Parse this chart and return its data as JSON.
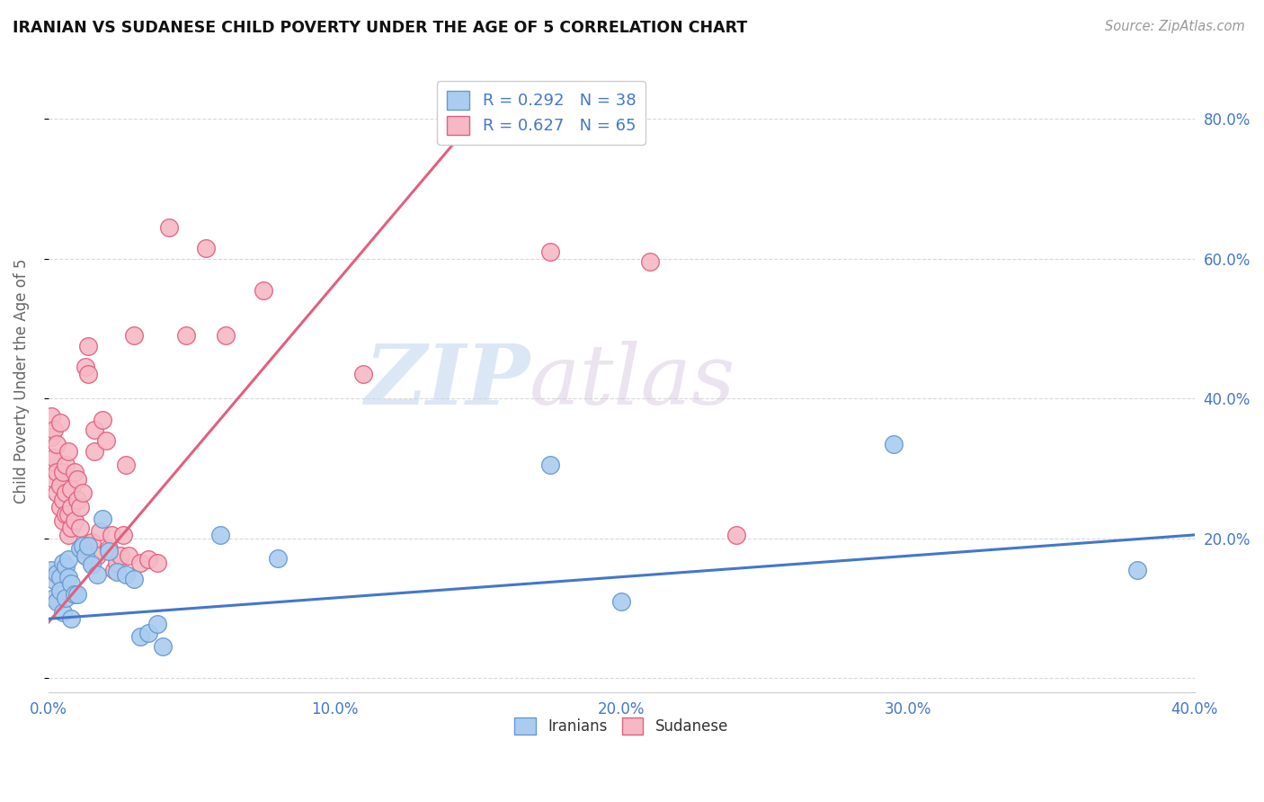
{
  "title": "IRANIAN VS SUDANESE CHILD POVERTY UNDER THE AGE OF 5 CORRELATION CHART",
  "source": "Source: ZipAtlas.com",
  "ylabel": "Child Poverty Under the Age of 5",
  "xlim": [
    0.0,
    0.4
  ],
  "ylim": [
    -0.02,
    0.87
  ],
  "xticks": [
    0.0,
    0.1,
    0.2,
    0.3,
    0.4
  ],
  "yticks": [
    0.0,
    0.2,
    0.4,
    0.6,
    0.8
  ],
  "xticklabels": [
    "0.0%",
    "10.0%",
    "20.0%",
    "30.0%",
    "40.0%"
  ],
  "yticklabels": [
    "",
    "20.0%",
    "40.0%",
    "60.0%",
    "80.0%"
  ],
  "background_color": "#ffffff",
  "grid_color": "#d8d8d8",
  "watermark_zip": "ZIP",
  "watermark_atlas": "atlas",
  "iranians_color": "#aaccf0",
  "iranians_edge_color": "#6699cc",
  "sudanese_color": "#f5b8c4",
  "sudanese_edge_color": "#e06080",
  "iranians_line_color": "#4477cc",
  "sudanese_line_color": "#e06080",
  "iranians_R": "0.292",
  "iranians_N": "38",
  "sudanese_R": "0.627",
  "sudanese_N": "65",
  "legend_label_iranians": "Iranians",
  "legend_label_sudanese": "Sudanese",
  "iranians_x": [
    0.001,
    0.002,
    0.002,
    0.003,
    0.003,
    0.004,
    0.004,
    0.005,
    0.005,
    0.006,
    0.006,
    0.007,
    0.007,
    0.008,
    0.008,
    0.009,
    0.01,
    0.011,
    0.012,
    0.013,
    0.014,
    0.015,
    0.017,
    0.019,
    0.021,
    0.024,
    0.027,
    0.03,
    0.032,
    0.035,
    0.038,
    0.04,
    0.06,
    0.08,
    0.175,
    0.2,
    0.295,
    0.38
  ],
  "iranians_y": [
    0.155,
    0.14,
    0.115,
    0.15,
    0.11,
    0.145,
    0.125,
    0.165,
    0.095,
    0.16,
    0.115,
    0.17,
    0.145,
    0.135,
    0.085,
    0.12,
    0.12,
    0.185,
    0.19,
    0.175,
    0.19,
    0.162,
    0.148,
    0.228,
    0.182,
    0.152,
    0.148,
    0.142,
    0.06,
    0.065,
    0.078,
    0.045,
    0.205,
    0.172,
    0.305,
    0.11,
    0.335,
    0.155
  ],
  "sudanese_x": [
    0.001,
    0.001,
    0.001,
    0.002,
    0.002,
    0.002,
    0.003,
    0.003,
    0.003,
    0.004,
    0.004,
    0.004,
    0.005,
    0.005,
    0.005,
    0.006,
    0.006,
    0.006,
    0.007,
    0.007,
    0.007,
    0.008,
    0.008,
    0.008,
    0.009,
    0.009,
    0.01,
    0.01,
    0.011,
    0.011,
    0.012,
    0.012,
    0.013,
    0.013,
    0.014,
    0.014,
    0.015,
    0.015,
    0.016,
    0.016,
    0.017,
    0.018,
    0.019,
    0.02,
    0.021,
    0.022,
    0.023,
    0.024,
    0.025,
    0.026,
    0.027,
    0.028,
    0.03,
    0.032,
    0.035,
    0.038,
    0.042,
    0.048,
    0.055,
    0.062,
    0.075,
    0.11,
    0.175,
    0.21,
    0.24
  ],
  "sudanese_y": [
    0.345,
    0.375,
    0.31,
    0.355,
    0.315,
    0.285,
    0.335,
    0.295,
    0.265,
    0.365,
    0.275,
    0.245,
    0.255,
    0.295,
    0.225,
    0.265,
    0.305,
    0.235,
    0.325,
    0.205,
    0.235,
    0.27,
    0.245,
    0.215,
    0.295,
    0.225,
    0.255,
    0.285,
    0.245,
    0.215,
    0.265,
    0.185,
    0.175,
    0.445,
    0.475,
    0.435,
    0.165,
    0.195,
    0.325,
    0.355,
    0.175,
    0.21,
    0.37,
    0.34,
    0.185,
    0.205,
    0.155,
    0.165,
    0.175,
    0.205,
    0.305,
    0.175,
    0.49,
    0.165,
    0.17,
    0.165,
    0.645,
    0.49,
    0.615,
    0.49,
    0.555,
    0.435,
    0.61,
    0.595,
    0.205
  ],
  "sudanese_line_x": [
    0.0,
    0.155
  ],
  "sudanese_line_y": [
    0.08,
    0.83
  ],
  "iranians_line_x": [
    0.0,
    0.4
  ],
  "iranians_line_y": [
    0.085,
    0.205
  ]
}
